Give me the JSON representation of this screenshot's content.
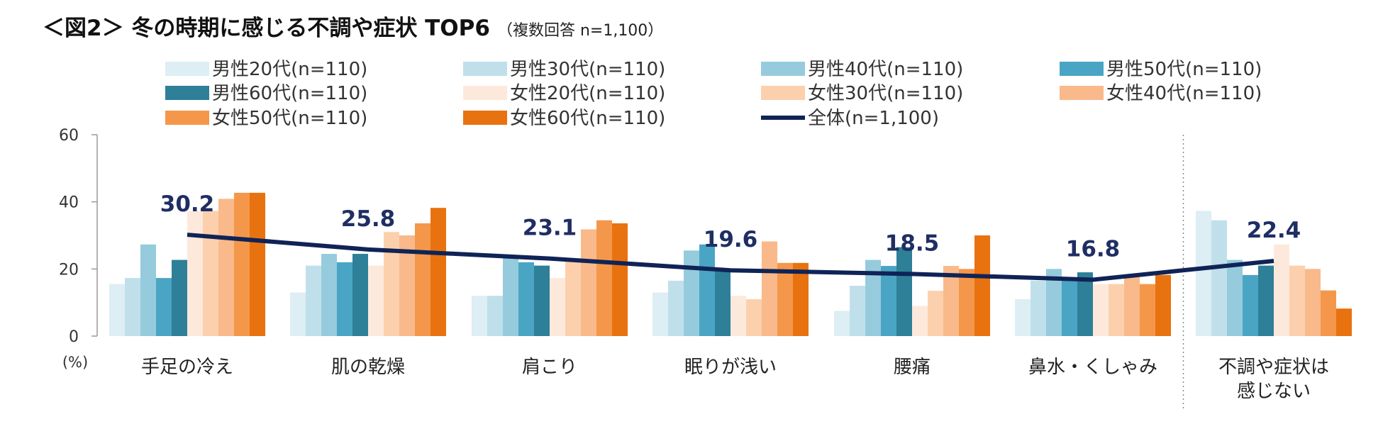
{
  "title": "＜図2＞ 冬の時期に感じる不調や症状 TOP6",
  "subtitle": "（複数回答 n=1,100）",
  "chart_data": {
    "type": "bar",
    "title": "＜図2＞ 冬の時期に感じる不調や症状 TOP6",
    "subtitle": "（複数回答 n=1,100）",
    "ylabel": "(%)",
    "ylim": [
      0,
      60
    ],
    "yticks": [
      0,
      20,
      40,
      60
    ],
    "categories": [
      [
        "手足の冷え"
      ],
      [
        "肌の乾燥"
      ],
      [
        "肩こり"
      ],
      [
        "眠りが浅い"
      ],
      [
        "腰痛"
      ],
      [
        "鼻水・くしゃみ"
      ],
      [
        "不調や症状は",
        "感じない"
      ]
    ],
    "series": [
      {
        "name": "男性20代(n=110)",
        "color": "#ddeef4",
        "values": [
          15.5,
          13.0,
          12.0,
          13.0,
          7.5,
          11.0,
          37.3
        ]
      },
      {
        "name": "男性30代(n=110)",
        "color": "#bfe0eb",
        "values": [
          17.3,
          21.0,
          12.0,
          16.5,
          15.0,
          16.5,
          34.5
        ]
      },
      {
        "name": "男性40代(n=110)",
        "color": "#95cbdd",
        "values": [
          27.3,
          24.5,
          23.5,
          25.5,
          22.7,
          20.0,
          22.7
        ]
      },
      {
        "name": "男性50代(n=110)",
        "color": "#4aa5c4",
        "values": [
          17.3,
          22.0,
          22.0,
          27.3,
          20.9,
          17.3,
          18.2
        ]
      },
      {
        "name": "男性60代(n=110)",
        "color": "#2e7f98",
        "values": [
          22.7,
          24.5,
          21.0,
          20.0,
          26.5,
          19.0,
          21.0
        ]
      },
      {
        "name": "女性20代(n=110)",
        "color": "#fde9dc",
        "values": [
          37.3,
          21.0,
          17.3,
          12.0,
          9.0,
          15.5,
          27.3
        ]
      },
      {
        "name": "女性30代(n=110)",
        "color": "#fcd0ad",
        "values": [
          37.3,
          31.0,
          22.7,
          11.0,
          13.5,
          15.5,
          21.0
        ]
      },
      {
        "name": "女性40代(n=110)",
        "color": "#f9b98a",
        "values": [
          40.9,
          30.0,
          31.8,
          28.2,
          20.9,
          18.2,
          20.0
        ]
      },
      {
        "name": "女性50代(n=110)",
        "color": "#f4974a",
        "values": [
          42.7,
          33.6,
          34.5,
          21.8,
          20.0,
          15.5,
          13.6
        ]
      },
      {
        "name": "女性60代(n=110)",
        "color": "#e8720f",
        "values": [
          42.7,
          38.2,
          33.6,
          21.8,
          30.0,
          18.2,
          8.2
        ]
      }
    ],
    "overall": {
      "name": "全体(n=1,100)",
      "color": "#0f2356",
      "type": "line",
      "values": [
        30.2,
        25.8,
        23.1,
        19.6,
        18.5,
        16.8,
        22.4
      ],
      "labels": [
        "30.2",
        "25.8",
        "23.1",
        "19.6",
        "18.5",
        "16.8",
        "22.4"
      ]
    },
    "legend_position": "top",
    "grid": false,
    "separator_before_category": 6
  }
}
